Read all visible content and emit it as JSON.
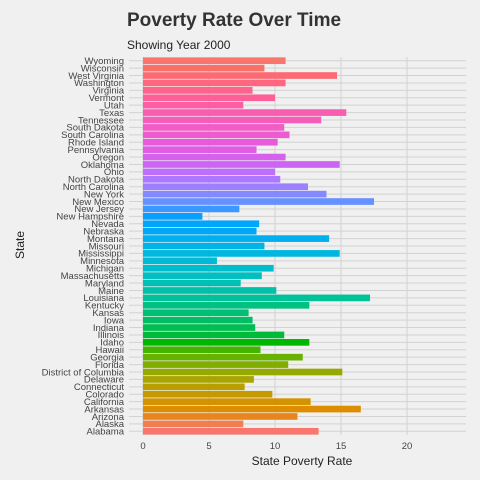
{
  "chart_data": {
    "type": "bar",
    "orientation": "horizontal",
    "title": "Poverty Rate Over Time",
    "subtitle": "Showing Year 2000",
    "xlabel": "State Poverty Rate",
    "ylabel": "State",
    "xlim": [
      0,
      24
    ],
    "xticks": [
      0,
      5,
      10,
      15,
      20
    ],
    "grid": true,
    "legend": "none",
    "categories": [
      "Alabama",
      "Alaska",
      "Arizona",
      "Arkansas",
      "California",
      "Colorado",
      "Connecticut",
      "Delaware",
      "District of Columbia",
      "Florida",
      "Georgia",
      "Hawaii",
      "Idaho",
      "Illinois",
      "Indiana",
      "Iowa",
      "Kansas",
      "Kentucky",
      "Louisiana",
      "Maine",
      "Maryland",
      "Massachusetts",
      "Michigan",
      "Minnesota",
      "Mississippi",
      "Missouri",
      "Montana",
      "Nebraska",
      "Nevada",
      "New Hampshire",
      "New Jersey",
      "New Mexico",
      "New York",
      "North Carolina",
      "North Dakota",
      "Ohio",
      "Oklahoma",
      "Oregon",
      "Pennsylvania",
      "Rhode Island",
      "South Carolina",
      "South Dakota",
      "Tennessee",
      "Texas",
      "Utah",
      "Vermont",
      "Virginia",
      "Washington",
      "West Virginia",
      "Wisconsin",
      "Wyoming"
    ],
    "values": [
      13.3,
      7.6,
      11.7,
      16.5,
      12.7,
      9.8,
      7.7,
      8.4,
      15.1,
      11.0,
      12.1,
      8.9,
      12.6,
      10.7,
      8.5,
      8.3,
      8.0,
      12.6,
      17.2,
      10.1,
      7.4,
      9.0,
      9.9,
      5.6,
      14.9,
      9.2,
      14.1,
      8.6,
      8.8,
      4.5,
      7.3,
      17.5,
      13.9,
      12.5,
      10.4,
      10.0,
      14.9,
      10.8,
      8.6,
      10.2,
      11.1,
      10.7,
      13.5,
      15.4,
      7.6,
      10.0,
      8.3,
      10.8,
      14.7,
      9.2,
      10.8
    ],
    "colors": [
      "#f8766d",
      "#f07e4e",
      "#e7851e",
      "#de8c00",
      "#d39200",
      "#c59900",
      "#b79f00",
      "#a8a400",
      "#96a900",
      "#81ad00",
      "#67b100",
      "#45b400",
      "#00b700",
      "#00ba38",
      "#00bc51",
      "#00be64",
      "#00c073",
      "#00c082",
      "#00c19a",
      "#00c1a7",
      "#00c0b4",
      "#00bfc0",
      "#00bdcb",
      "#00bad5",
      "#00b7df",
      "#00b3e8",
      "#00aff0",
      "#00a9f8",
      "#00a5fe",
      "#0a9fff",
      "#3b98ff",
      "#6791ff",
      "#8589ff",
      "#9c80ff",
      "#ae77ff",
      "#bd6ff9",
      "#ca66f3",
      "#d561ec",
      "#df5ce4",
      "#e75bdb",
      "#ed5bd1",
      "#f25cc6",
      "#f65dbb",
      "#f95daf",
      "#fb5ea3",
      "#fc6097",
      "#fd638b",
      "#fd677f",
      "#fc6b73",
      "#fa7068",
      "#f8766d"
    ]
  }
}
